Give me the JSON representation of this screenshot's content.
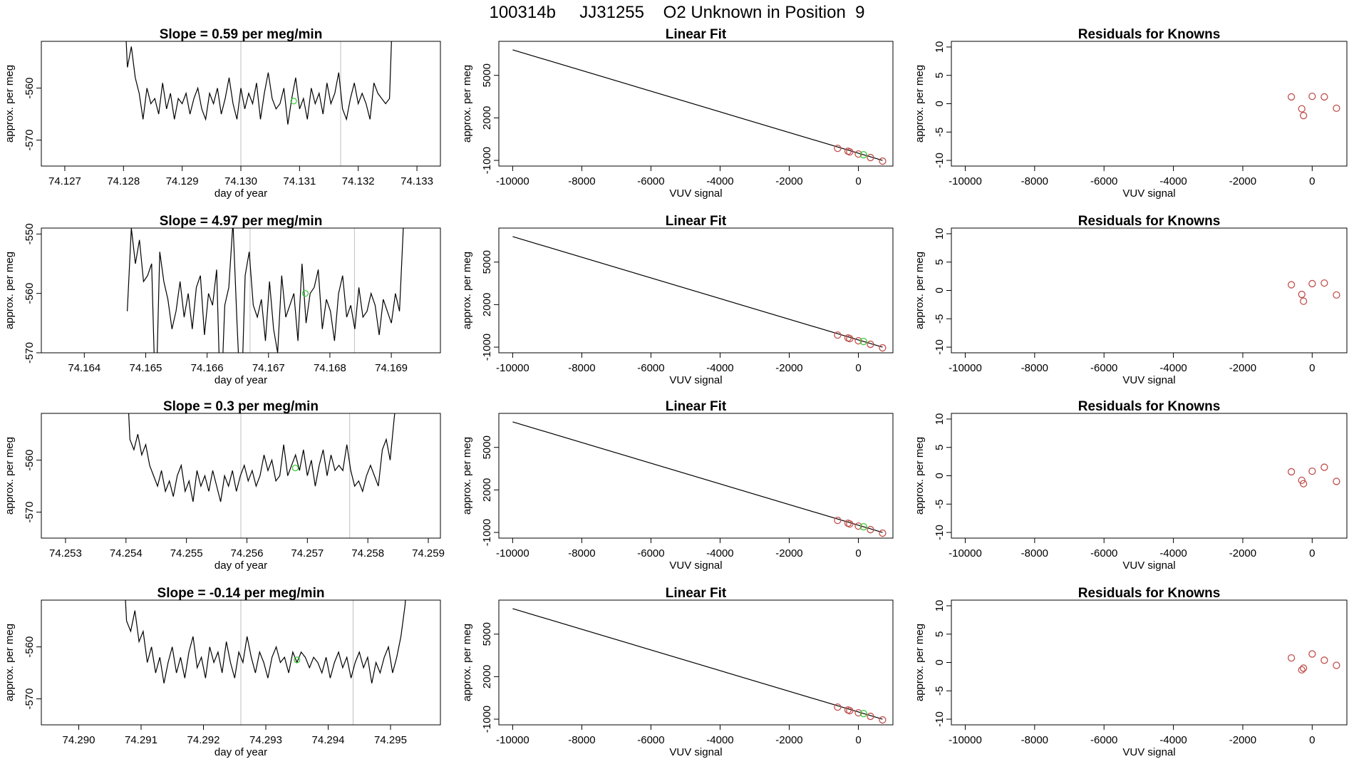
{
  "page": {
    "title": "100314b     JJ31255    O2 Unknown in Position  9"
  },
  "colors": {
    "line": "#000000",
    "known_points": "#c0504d",
    "unknown_point": "#33cc33",
    "marker_lines": "#bfbfbf"
  },
  "chart_data": [
    {
      "type": "line",
      "title": "Slope =  0.59  per meg/min",
      "xlabel": "day of year",
      "ylabel": "approx. per meg",
      "xlim": [
        74.1266,
        74.1334
      ],
      "ylim": [
        -575,
        -551
      ],
      "xticks": [
        74.127,
        74.128,
        74.129,
        74.13,
        74.131,
        74.132,
        74.133
      ],
      "xtick_labels": [
        "74.127",
        "74.128",
        "74.129",
        "74.130",
        "74.131",
        "74.132",
        "74.133"
      ],
      "yticks": [
        -560,
        -570
      ],
      "ytick_labels": [
        "-560",
        "-570"
      ],
      "marker_lines_x": [
        74.13,
        74.1317
      ],
      "unknown_point": {
        "x": 74.1309,
        "y": -562.5
      },
      "series_x_range": [
        74.128,
        74.1326
      ],
      "series_y": [
        -540,
        -556,
        -552,
        -558,
        -561,
        -566,
        -560,
        -563,
        -562,
        -565,
        -559,
        -564,
        -561,
        -566,
        -562,
        -563,
        -561,
        -565,
        -562,
        -560,
        -564,
        -566,
        -561,
        -563,
        -560,
        -565,
        -562,
        -558,
        -563,
        -566,
        -560,
        -564,
        -561,
        -563,
        -559,
        -566,
        -561,
        -557,
        -562,
        -564,
        -563,
        -560,
        -567,
        -562,
        -558,
        -564,
        -562,
        -566,
        -560,
        -563,
        -561,
        -565,
        -559,
        -563,
        -561,
        -557,
        -564,
        -566,
        -562,
        -559,
        -563,
        -561,
        -563,
        -566,
        -559,
        -561,
        -562,
        -563,
        -562,
        -540
      ]
    },
    {
      "type": "scatter",
      "title": "Linear Fit",
      "xlabel": "VUV signal",
      "ylabel": "approx. per meg",
      "xlim": [
        -10400,
        1000
      ],
      "ylim": [
        -1400,
        7400
      ],
      "xticks": [
        -10000,
        -8000,
        -6000,
        -4000,
        -2000,
        0
      ],
      "xtick_labels": [
        "-10000",
        "-8000",
        "-6000",
        "-4000",
        "-2000",
        "0"
      ],
      "yticks": [
        -1000,
        2000,
        5000
      ],
      "ytick_labels": [
        "-1000",
        "2000",
        "5000"
      ],
      "fit_line": [
        [
          -10000,
          6800
        ],
        [
          700,
          -1000
        ]
      ],
      "known_points": [
        [
          -600,
          -150
        ],
        [
          -300,
          -350
        ],
        [
          -250,
          -400
        ],
        [
          0,
          -550
        ],
        [
          350,
          -800
        ],
        [
          700,
          -1050
        ]
      ],
      "unknown_point": [
        150,
        -600
      ]
    },
    {
      "type": "scatter",
      "title": "Residuals for Knowns",
      "xlabel": "VUV signal",
      "ylabel": "approx. per meg",
      "xlim": [
        -10400,
        1000
      ],
      "ylim": [
        -11,
        11
      ],
      "xticks": [
        -10000,
        -8000,
        -6000,
        -4000,
        -2000,
        0
      ],
      "xtick_labels": [
        "-10000",
        "-8000",
        "-6000",
        "-4000",
        "-2000",
        "0"
      ],
      "yticks": [
        -10,
        -5,
        0,
        5,
        10
      ],
      "ytick_labels": [
        "-10",
        "-5",
        "0",
        "5",
        "10"
      ],
      "known_points": [
        [
          -600,
          1.2
        ],
        [
          -300,
          -0.9
        ],
        [
          -250,
          -2.1
        ],
        [
          0,
          1.3
        ],
        [
          350,
          1.2
        ],
        [
          700,
          -0.8
        ]
      ]
    },
    {
      "type": "line",
      "title": "Slope =  4.97  per meg/min",
      "xlabel": "day of year",
      "ylabel": "approx. per meg",
      "xlim": [
        74.1633,
        74.1698
      ],
      "ylim": [
        -570,
        -549
      ],
      "xticks": [
        74.164,
        74.165,
        74.166,
        74.167,
        74.168,
        74.169
      ],
      "xtick_labels": [
        "74.164",
        "74.165",
        "74.166",
        "74.167",
        "74.168",
        "74.169"
      ],
      "yticks": [
        -550,
        -560,
        -570
      ],
      "ytick_labels": [
        "-550",
        "-560",
        "-570"
      ],
      "marker_lines_x": [
        74.1667,
        74.1684
      ],
      "unknown_point": {
        "x": 74.1676,
        "y": -560
      },
      "series_x_range": [
        74.1647,
        74.1692
      ],
      "series_y": [
        -563,
        -549,
        -555,
        -551,
        -558,
        -557,
        -555,
        -580,
        -553,
        -558,
        -561,
        -566,
        -563,
        -558,
        -564,
        -560,
        -566,
        -559,
        -557,
        -567,
        -560,
        -562,
        -556,
        -580,
        -562,
        -559,
        -548,
        -565,
        -580,
        -557,
        -553,
        -562,
        -564,
        -561,
        -568,
        -558,
        -566,
        -570,
        -557,
        -564,
        -562,
        -560,
        -568,
        -555,
        -565,
        -560,
        -559,
        -556,
        -566,
        -561,
        -563,
        -568,
        -560,
        -557,
        -564,
        -562,
        -566,
        -559,
        -564,
        -563,
        -560,
        -562,
        -567,
        -561,
        -563,
        -565,
        -560,
        -563,
        -548
      ]
    },
    {
      "type": "scatter",
      "title": "Linear Fit",
      "xlabel": "VUV signal",
      "ylabel": "approx. per meg",
      "xlim": [
        -10400,
        1000
      ],
      "ylim": [
        -1400,
        7400
      ],
      "xticks": [
        -10000,
        -8000,
        -6000,
        -4000,
        -2000,
        0
      ],
      "xtick_labels": [
        "-10000",
        "-8000",
        "-6000",
        "-4000",
        "-2000",
        "0"
      ],
      "yticks": [
        -1000,
        2000,
        5000
      ],
      "ytick_labels": [
        "-1000",
        "2000",
        "5000"
      ],
      "fit_line": [
        [
          -10000,
          6800
        ],
        [
          700,
          -1000
        ]
      ],
      "known_points": [
        [
          -600,
          -150
        ],
        [
          -300,
          -350
        ],
        [
          -250,
          -400
        ],
        [
          0,
          -550
        ],
        [
          350,
          -800
        ],
        [
          700,
          -1050
        ]
      ],
      "unknown_point": [
        150,
        -600
      ]
    },
    {
      "type": "scatter",
      "title": "Residuals for Knowns",
      "xlabel": "VUV signal",
      "ylabel": "approx. per meg",
      "xlim": [
        -10400,
        1000
      ],
      "ylim": [
        -11,
        11
      ],
      "xticks": [
        -10000,
        -8000,
        -6000,
        -4000,
        -2000,
        0
      ],
      "xtick_labels": [
        "-10000",
        "-8000",
        "-6000",
        "-4000",
        "-2000",
        "0"
      ],
      "yticks": [
        -10,
        -5,
        0,
        5,
        10
      ],
      "ytick_labels": [
        "-10",
        "-5",
        "0",
        "5",
        "10"
      ],
      "known_points": [
        [
          -600,
          1.0
        ],
        [
          -300,
          -0.7
        ],
        [
          -250,
          -1.9
        ],
        [
          0,
          1.2
        ],
        [
          350,
          1.3
        ],
        [
          700,
          -0.8
        ]
      ]
    },
    {
      "type": "line",
      "title": "Slope =  0.3  per meg/min",
      "xlabel": "day of year",
      "ylabel": "approx. per meg",
      "xlim": [
        74.2526,
        74.2592
      ],
      "ylim": [
        -575,
        -551
      ],
      "xticks": [
        74.253,
        74.254,
        74.255,
        74.256,
        74.257,
        74.258,
        74.259
      ],
      "xtick_labels": [
        "74.253",
        "74.254",
        "74.255",
        "74.256",
        "74.257",
        "74.258",
        "74.259"
      ],
      "yticks": [
        -560,
        -570
      ],
      "ytick_labels": [
        "-560",
        "-570"
      ],
      "marker_lines_x": [
        74.2559,
        74.2577
      ],
      "unknown_point": {
        "x": 74.2568,
        "y": -561.5
      },
      "series_x_range": [
        74.254,
        74.2585
      ],
      "series_y": [
        -540,
        -556,
        -558,
        -555,
        -559,
        -557,
        -561,
        -563,
        -565,
        -562,
        -566,
        -564,
        -567,
        -563,
        -561,
        -566,
        -564,
        -568,
        -562,
        -565,
        -563,
        -566,
        -562,
        -565,
        -568,
        -563,
        -565,
        -562,
        -566,
        -563,
        -561,
        -564,
        -562,
        -565,
        -563,
        -559,
        -562,
        -560,
        -564,
        -563,
        -557,
        -563,
        -561,
        -559,
        -562,
        -558,
        -563,
        -560,
        -565,
        -561,
        -558,
        -563,
        -559,
        -562,
        -561,
        -562,
        -557,
        -562,
        -565,
        -564,
        -566,
        -563,
        -561,
        -563,
        -565,
        -558,
        -556,
        -560,
        -552,
        -545
      ]
    },
    {
      "type": "scatter",
      "title": "Linear Fit",
      "xlabel": "VUV signal",
      "ylabel": "approx. per meg",
      "xlim": [
        -10400,
        1000
      ],
      "ylim": [
        -1400,
        7400
      ],
      "xticks": [
        -10000,
        -8000,
        -6000,
        -4000,
        -2000,
        0
      ],
      "xtick_labels": [
        "-10000",
        "-8000",
        "-6000",
        "-4000",
        "-2000",
        "0"
      ],
      "yticks": [
        -1000,
        2000,
        5000
      ],
      "ytick_labels": [
        "-1000",
        "2000",
        "5000"
      ],
      "fit_line": [
        [
          -10000,
          6800
        ],
        [
          700,
          -1000
        ]
      ],
      "known_points": [
        [
          -600,
          -150
        ],
        [
          -300,
          -350
        ],
        [
          -250,
          -400
        ],
        [
          0,
          -550
        ],
        [
          350,
          -800
        ],
        [
          700,
          -1050
        ]
      ],
      "unknown_point": [
        150,
        -600
      ]
    },
    {
      "type": "scatter",
      "title": "Residuals for Knowns",
      "xlabel": "VUV signal",
      "ylabel": "approx. per meg",
      "xlim": [
        -10400,
        1000
      ],
      "ylim": [
        -11,
        11
      ],
      "xticks": [
        -10000,
        -8000,
        -6000,
        -4000,
        -2000,
        0
      ],
      "xtick_labels": [
        "-10000",
        "-8000",
        "-6000",
        "-4000",
        "-2000",
        "0"
      ],
      "yticks": [
        -10,
        -5,
        0,
        5,
        10
      ],
      "ytick_labels": [
        "-10",
        "-5",
        "0",
        "5",
        "10"
      ],
      "known_points": [
        [
          -600,
          0.7
        ],
        [
          -300,
          -0.8
        ],
        [
          -250,
          -1.4
        ],
        [
          0,
          0.8
        ],
        [
          350,
          1.5
        ],
        [
          700,
          -1.0
        ]
      ]
    },
    {
      "type": "line",
      "title": "Slope =  -0.14  per meg/min",
      "xlabel": "day of year",
      "ylabel": "approx. per meg",
      "xlim": [
        74.2894,
        74.2958
      ],
      "ylim": [
        -575,
        -551
      ],
      "xticks": [
        74.29,
        74.291,
        74.292,
        74.293,
        74.294,
        74.295
      ],
      "xtick_labels": [
        "74.290",
        "74.291",
        "74.292",
        "74.293",
        "74.294",
        "74.295"
      ],
      "yticks": [
        -560,
        -570
      ],
      "ytick_labels": [
        "-560",
        "-570"
      ],
      "marker_lines_x": [
        74.2926,
        74.2944
      ],
      "unknown_point": {
        "x": 74.2935,
        "y": -562.5
      },
      "series_x_range": [
        74.2907,
        74.2953
      ],
      "series_y": [
        -540,
        -555,
        -557,
        -553,
        -559,
        -557,
        -563,
        -560,
        -565,
        -562,
        -567,
        -563,
        -560,
        -565,
        -562,
        -566,
        -561,
        -558,
        -564,
        -562,
        -566,
        -560,
        -563,
        -561,
        -565,
        -559,
        -563,
        -566,
        -561,
        -563,
        -558,
        -562,
        -565,
        -561,
        -563,
        -566,
        -562,
        -560,
        -563,
        -562,
        -565,
        -561,
        -563,
        -561,
        -562,
        -564,
        -562,
        -563,
        -565,
        -562,
        -566,
        -563,
        -561,
        -564,
        -562,
        -566,
        -563,
        -561,
        -564,
        -562,
        -567,
        -563,
        -565,
        -562,
        -560,
        -565,
        -562,
        -558,
        -552,
        -540
      ]
    },
    {
      "type": "scatter",
      "title": "Linear Fit",
      "xlabel": "VUV signal",
      "ylabel": "approx. per meg",
      "xlim": [
        -10400,
        1000
      ],
      "ylim": [
        -1400,
        7400
      ],
      "xticks": [
        -10000,
        -8000,
        -6000,
        -4000,
        -2000,
        0
      ],
      "xtick_labels": [
        "-10000",
        "-8000",
        "-6000",
        "-4000",
        "-2000",
        "0"
      ],
      "yticks": [
        -1000,
        2000,
        5000
      ],
      "ytick_labels": [
        "-1000",
        "2000",
        "5000"
      ],
      "fit_line": [
        [
          -10000,
          6800
        ],
        [
          700,
          -1000
        ]
      ],
      "known_points": [
        [
          -600,
          -150
        ],
        [
          -300,
          -350
        ],
        [
          -250,
          -400
        ],
        [
          0,
          -550
        ],
        [
          350,
          -800
        ],
        [
          700,
          -1050
        ]
      ],
      "unknown_point": [
        150,
        -600
      ]
    },
    {
      "type": "scatter",
      "title": "Residuals for Knowns",
      "xlabel": "VUV signal",
      "ylabel": "approx. per meg",
      "xlim": [
        -10400,
        1000
      ],
      "ylim": [
        -11,
        11
      ],
      "xticks": [
        -10000,
        -8000,
        -6000,
        -4000,
        -2000,
        0
      ],
      "xtick_labels": [
        "-10000",
        "-8000",
        "-6000",
        "-4000",
        "-2000",
        "0"
      ],
      "yticks": [
        -10,
        -5,
        0,
        5,
        10
      ],
      "ytick_labels": [
        "-10",
        "-5",
        "0",
        "5",
        "10"
      ],
      "known_points": [
        [
          -600,
          0.8
        ],
        [
          -300,
          -1.3
        ],
        [
          -250,
          -1.0
        ],
        [
          0,
          1.5
        ],
        [
          350,
          0.4
        ],
        [
          700,
          -0.5
        ]
      ]
    }
  ]
}
